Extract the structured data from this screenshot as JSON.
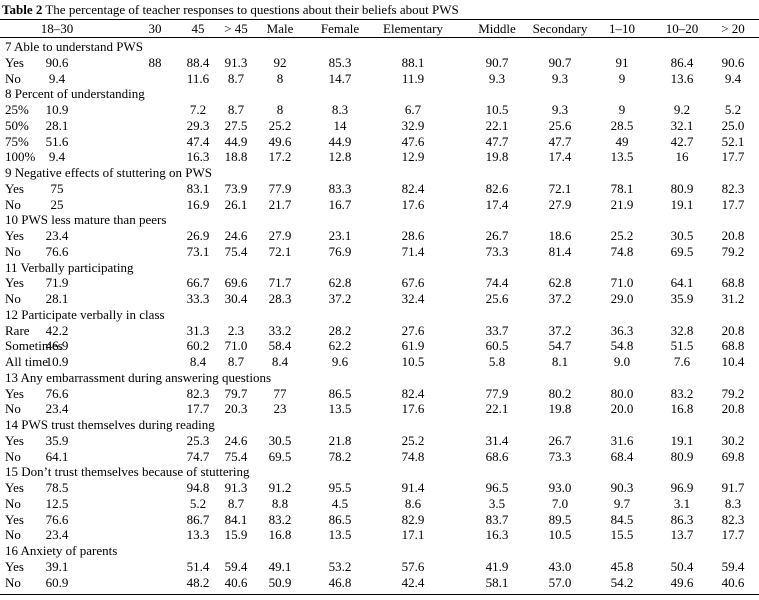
{
  "header": {
    "label": "Table 2",
    "title": "The percentage of teacher responses to questions about their beliefs about PWS"
  },
  "table": {
    "columns": [
      "18–30",
      "30",
      "45",
      "> 45",
      "Male",
      "Female",
      "Elementary",
      "Middle",
      "Secondary",
      "1–10",
      "10–20",
      "> 20"
    ],
    "sections": [
      {
        "title": "7 Able to understand PWS",
        "rows": [
          {
            "label": "Yes",
            "cells": [
              "90.6",
              "88",
              "88.4",
              "91.3",
              "92",
              "85.3",
              "88.1",
              "90.7",
              "90.7",
              "91",
              "86.4",
              "90.6"
            ]
          },
          {
            "label": "No",
            "cells": [
              "9.4",
              null,
              "11.6",
              "8.7",
              "8",
              "14.7",
              "11.9",
              "9.3",
              "9.3",
              "9",
              "13.6",
              "9.4"
            ]
          }
        ]
      },
      {
        "title": "8 Percent of understanding",
        "rows": [
          {
            "label": "25%",
            "cells": [
              "10.9",
              null,
              "7.2",
              "8.7",
              "8",
              "8.3",
              "6.7",
              "10.5",
              "9.3",
              "9",
              "9.2",
              "5.2"
            ]
          },
          {
            "label": "50%",
            "cells": [
              "28.1",
              null,
              "29.3",
              "27.5",
              "25.2",
              "14",
              "32.9",
              "22.1",
              "25.6",
              "28.5",
              "32.1",
              "25.0"
            ]
          },
          {
            "label": "75%",
            "cells": [
              "51.6",
              null,
              "47.4",
              "44.9",
              "49.6",
              "44.9",
              "47.6",
              "47.7",
              "47.7",
              "49",
              "42.7",
              "52.1"
            ]
          },
          {
            "label": "100%",
            "cells": [
              "9.4",
              null,
              "16.3",
              "18.8",
              "17.2",
              "12.8",
              "12.9",
              "19.8",
              "17.4",
              "13.5",
              "16",
              "17.7"
            ]
          }
        ]
      },
      {
        "title": "9 Negative effects of stuttering on PWS",
        "rows": [
          {
            "label": "Yes",
            "cells": [
              "75",
              null,
              "83.1",
              "73.9",
              "77.9",
              "83.3",
              "82.4",
              "82.6",
              "72.1",
              "78.1",
              "80.9",
              "82.3"
            ]
          },
          {
            "label": "No",
            "cells": [
              "25",
              null,
              "16.9",
              "26.1",
              "21.7",
              "16.7",
              "17.6",
              "17.4",
              "27.9",
              "21.9",
              "19.1",
              "17.7"
            ]
          }
        ]
      },
      {
        "title": "10 PWS less mature than peers",
        "rows": [
          {
            "label": "Yes",
            "cells": [
              "23.4",
              null,
              "26.9",
              "24.6",
              "27.9",
              "23.1",
              "28.6",
              "26.7",
              "18.6",
              "25.2",
              "30.5",
              "20.8"
            ]
          },
          {
            "label": "No",
            "cells": [
              "76.6",
              null,
              "73.1",
              "75.4",
              "72.1",
              "76.9",
              "71.4",
              "73.3",
              "81.4",
              "74.8",
              "69.5",
              "79.2"
            ]
          }
        ]
      },
      {
        "title": "11 Verbally participating",
        "rows": [
          {
            "label": "Yes",
            "cells": [
              "71.9",
              null,
              "66.7",
              "69.6",
              "71.7",
              "62.8",
              "67.6",
              "74.4",
              "62.8",
              "71.0",
              "64.1",
              "68.8"
            ]
          },
          {
            "label": "No",
            "cells": [
              "28.1",
              null,
              "33.3",
              "30.4",
              "28.3",
              "37.2",
              "32.4",
              "25.6",
              "37.2",
              "29.0",
              "35.9",
              "31.2"
            ]
          }
        ]
      },
      {
        "title": "12 Participate verbally in class",
        "rows": [
          {
            "label": "Rare",
            "cells": [
              "42.2",
              null,
              "31.3",
              "2.3",
              "33.2",
              "28.2",
              "27.6",
              "33.7",
              "37.2",
              "36.3",
              "32.8",
              "20.8"
            ]
          },
          {
            "label": "Sometimes",
            "cells": [
              "46.9",
              null,
              "60.2",
              "71.0",
              "58.4",
              "62.2",
              "61.9",
              "60.5",
              "54.7",
              "54.8",
              "51.5",
              "68.8"
            ]
          },
          {
            "label": "All time",
            "cells": [
              "10.9",
              null,
              "8.4",
              "8.7",
              "8.4",
              "9.6",
              "10.5",
              "5.8",
              "8.1",
              "9.0",
              "7.6",
              "10.4"
            ]
          }
        ]
      },
      {
        "title": "13 Any embarrassment during answering questions",
        "rows": [
          {
            "label": "Yes",
            "cells": [
              "76.6",
              null,
              "82.3",
              "79.7",
              "77",
              "86.5",
              "82.4",
              "77.9",
              "80.2",
              "80.0",
              "83.2",
              "79.2"
            ]
          },
          {
            "label": "No",
            "cells": [
              "23.4",
              null,
              "17.7",
              "20.3",
              "23",
              "13.5",
              "17.6",
              "22.1",
              "19.8",
              "20.0",
              "16.8",
              "20.8"
            ]
          }
        ]
      },
      {
        "title": "14 PWS trust themselves during reading",
        "rows": [
          {
            "label": "Yes",
            "cells": [
              "35.9",
              null,
              "25.3",
              "24.6",
              "30.5",
              "21.8",
              "25.2",
              "31.4",
              "26.7",
              "31.6",
              "19.1",
              "30.2"
            ]
          },
          {
            "label": "No",
            "cells": [
              "64.1",
              null,
              "74.7",
              "75.4",
              "69.5",
              "78.2",
              "74.8",
              "68.6",
              "73.3",
              "68.4",
              "80.9",
              "69.8"
            ]
          }
        ]
      },
      {
        "title": "15 Don’t trust themselves because of stuttering",
        "rows": [
          {
            "label": "Yes",
            "cells": [
              "78.5",
              null,
              "94.8",
              "91.3",
              "91.2",
              "95.5",
              "91.4",
              "96.5",
              "93.0",
              "90.3",
              "96.9",
              "91.7"
            ]
          },
          {
            "label": "No",
            "cells": [
              "12.5",
              null,
              "5.2",
              "8.7",
              "8.8",
              "4.5",
              "8.6",
              "3.5",
              "7.0",
              "9.7",
              "3.1",
              "8.3"
            ]
          },
          {
            "label": "Yes",
            "cells": [
              "76.6",
              null,
              "86.7",
              "84.1",
              "83.2",
              "86.5",
              "82.9",
              "83.7",
              "89.5",
              "84.5",
              "86.3",
              "82.3"
            ]
          },
          {
            "label": "No",
            "cells": [
              "23.4",
              null,
              "13.3",
              "15.9",
              "16.8",
              "13.5",
              "17.1",
              "16.3",
              "10.5",
              "15.5",
              "13.7",
              "17.7"
            ]
          }
        ]
      },
      {
        "title": "16 Anxiety of parents",
        "rows": [
          {
            "label": "Yes",
            "cells": [
              "39.1",
              null,
              "51.4",
              "59.4",
              "49.1",
              "53.2",
              "57.6",
              "41.9",
              "43.0",
              "45.8",
              "50.4",
              "59.4"
            ]
          },
          {
            "label": "No",
            "cells": [
              "60.9",
              null,
              "48.2",
              "40.6",
              "50.9",
              "46.8",
              "42.4",
              "58.1",
              "57.0",
              "54.2",
              "49.6",
              "40.6"
            ]
          }
        ]
      }
    ]
  }
}
